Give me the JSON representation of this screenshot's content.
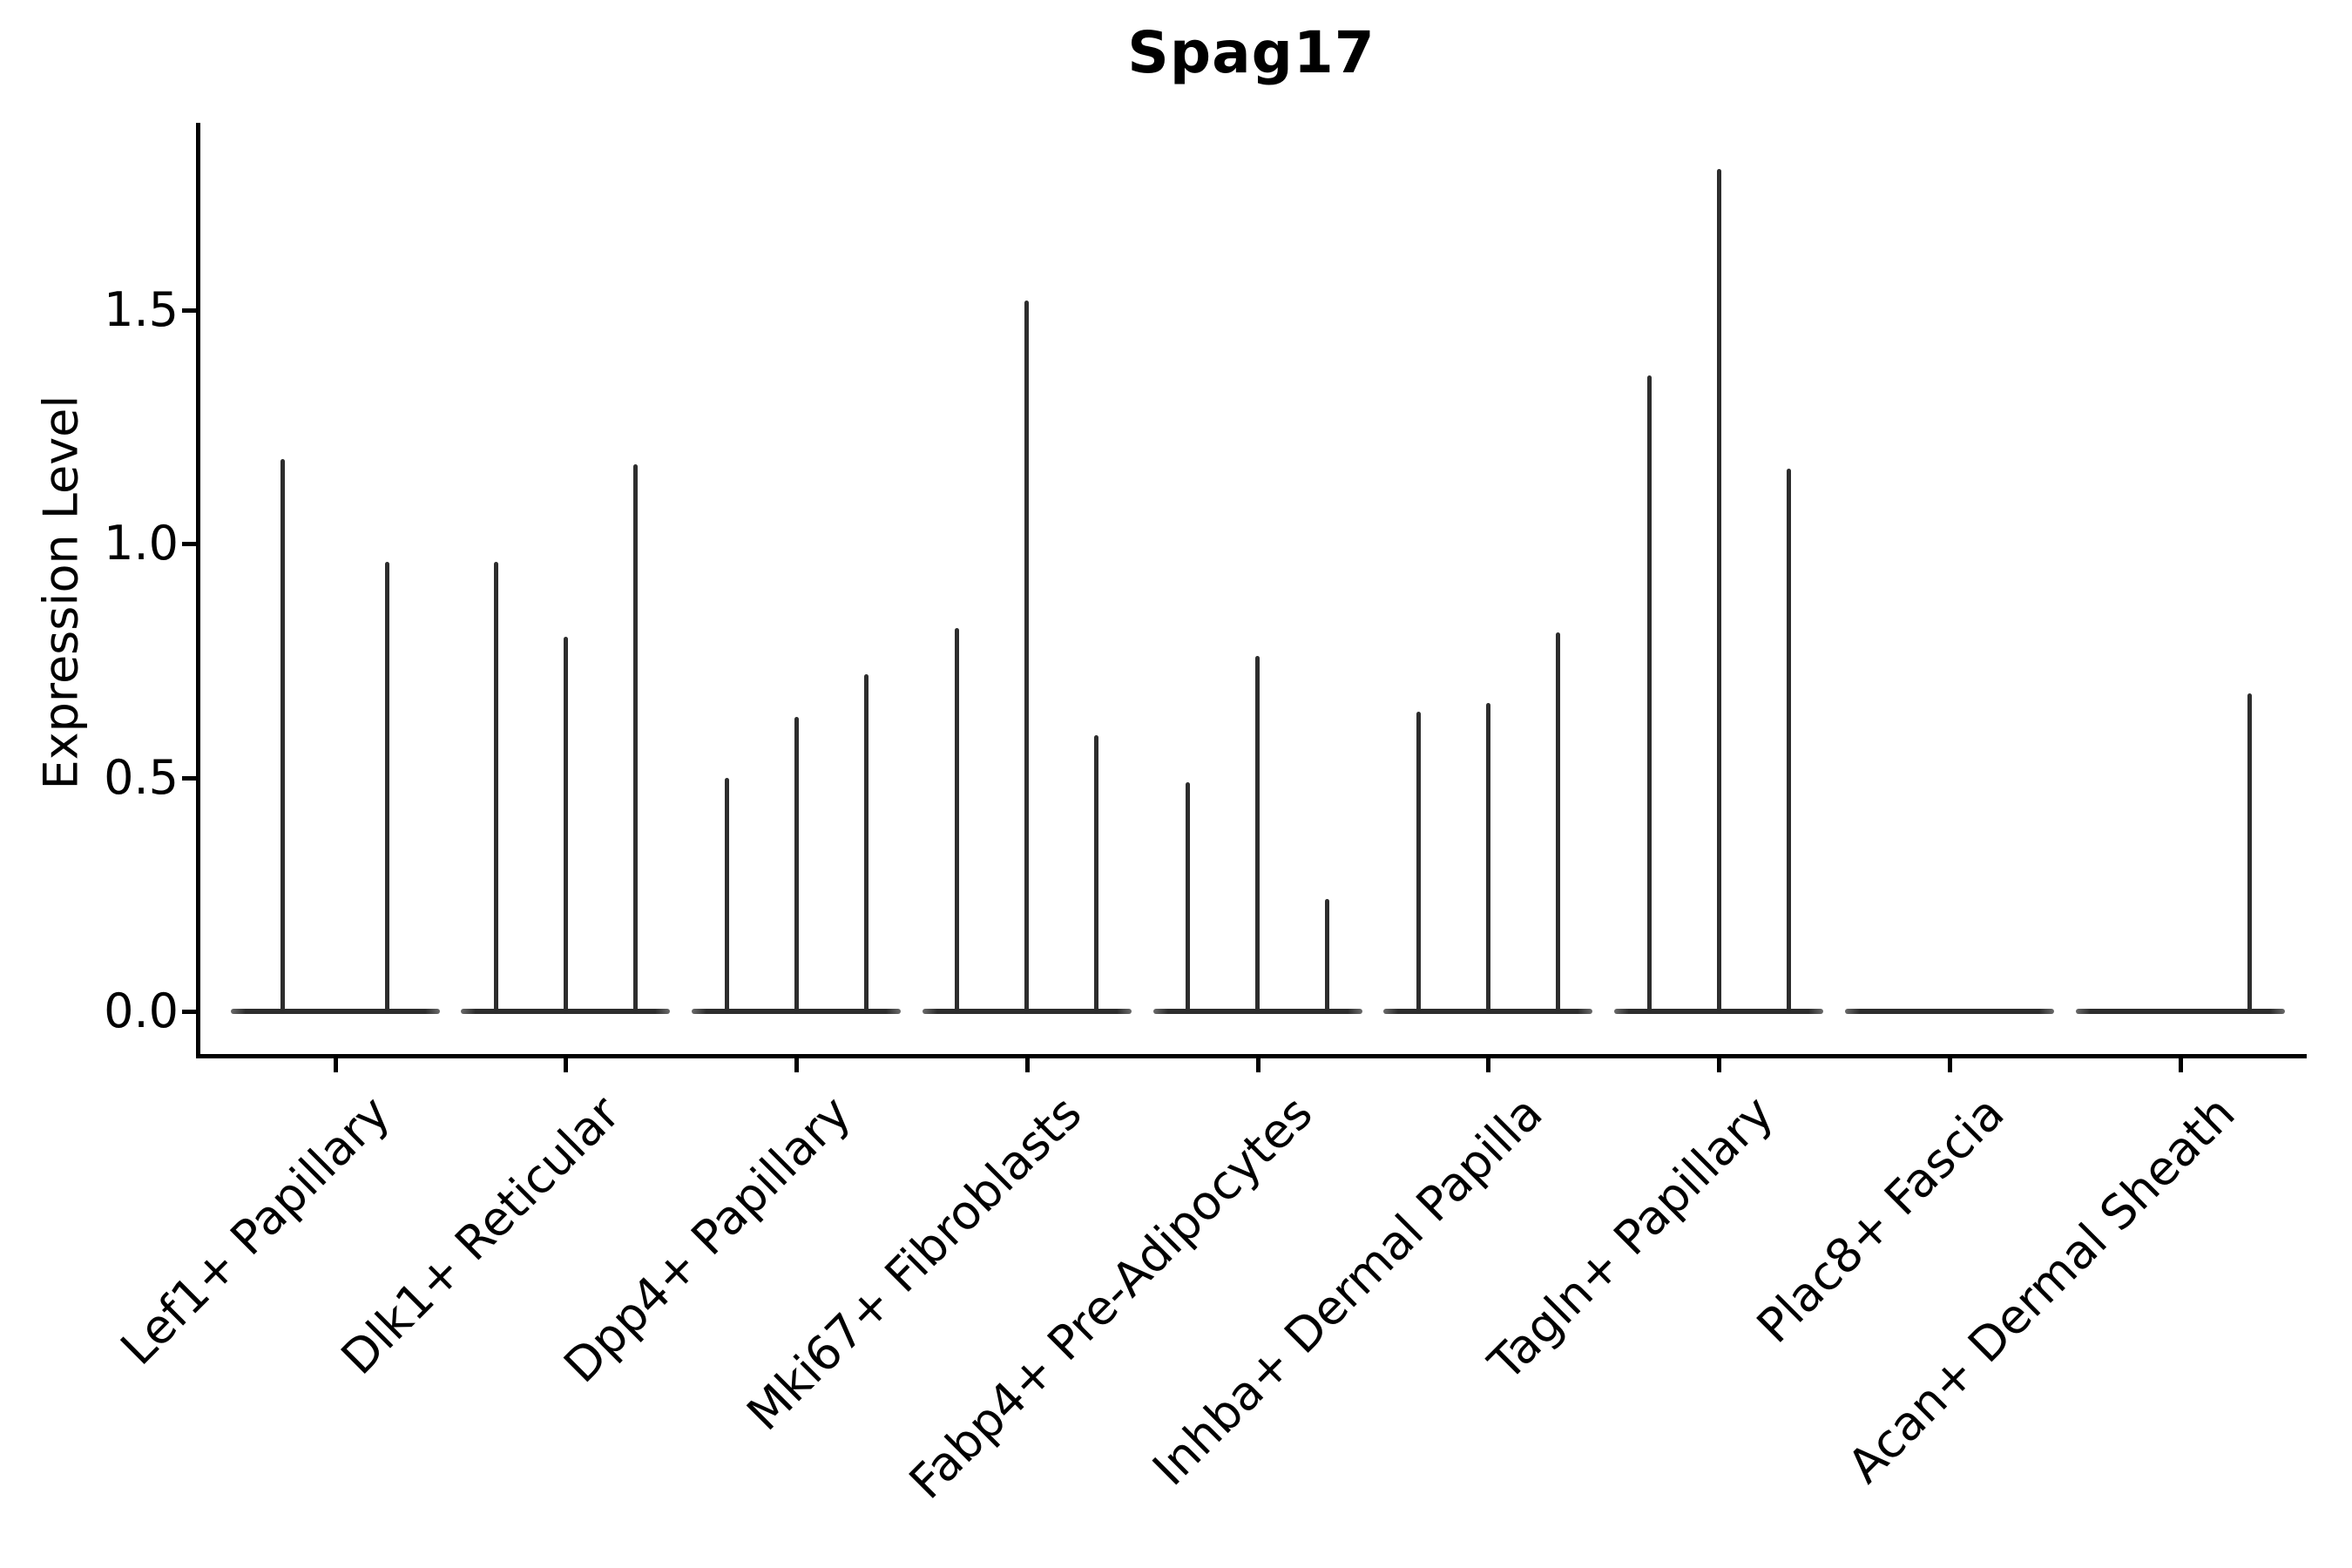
{
  "chart_data": {
    "type": "violin",
    "title": "Spag17",
    "ylabel": "Expression Level",
    "xlabel": "",
    "categories": [
      "Lef1+ Papillary",
      "Dlk1+ Reticular",
      "Dpp4+ Papillary",
      "Mki67+ Fibroblasts",
      "Fabp4+ Pre-Adipocytes",
      "Inhba+ Dermal Papilla",
      "Tagln+ Papillary",
      "Plac8+ Fascia",
      "Acan+ Dermal Sheath"
    ],
    "spike_maxima": [
      [
        1.18,
        0.96
      ],
      [
        0.96,
        0.8,
        1.17
      ],
      [
        0.5,
        0.63,
        0.72
      ],
      [
        0.82,
        1.52,
        0.59
      ],
      [
        0.49,
        0.76,
        0.24
      ],
      [
        0.64,
        0.66,
        0.81
      ],
      [
        1.36,
        1.8,
        1.16
      ],
      [
        0.0,
        0.0,
        0.0
      ],
      [
        0.0,
        0.0,
        0.68
      ]
    ],
    "yticks": [
      0.0,
      0.5,
      1.0,
      1.5
    ],
    "ytick_labels": [
      "0.0",
      "0.5",
      "1.0",
      "1.5"
    ],
    "ylim": [
      -0.11,
      1.9
    ],
    "grid": false,
    "legend": null,
    "description": "Violin plot of Spag17 expression per fibroblast cluster; each category holds 2-3 extremely skewed violins drawn as a flat base at 0 with a thin spike rising to the listed maximum expression value."
  },
  "colors": {
    "background": "#ffffff",
    "violin": "#2d2d2d",
    "violin_tip": "#6a6a6a",
    "axis": "#000000",
    "text": "#000000"
  }
}
